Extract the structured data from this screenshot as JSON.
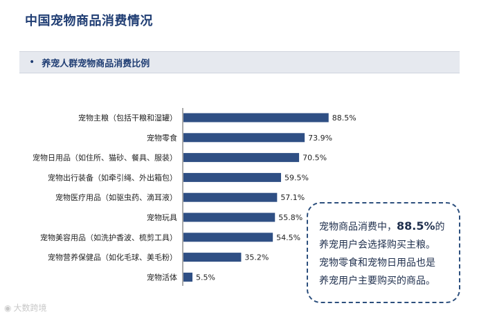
{
  "header": {
    "title": "中国宠物商品消费情况",
    "section_bullet": "•",
    "section_title": "养宠人群宠物商品消费比例"
  },
  "colors": {
    "bar": "#2f4f84",
    "title": "#1f3d73",
    "banner_bg": "#e6e9ef",
    "callout_border": "#2c4f7d"
  },
  "chart_data": {
    "type": "bar",
    "orientation": "horizontal",
    "title": "养宠人群宠物商品消费比例",
    "xlabel": "",
    "ylabel": "",
    "unit": "%",
    "xlim": [
      0,
      100
    ],
    "grid": false,
    "categories": [
      "宠物主粮（包括干粮和湿罐）",
      "宠物零食",
      "宠物日用品（如住所、猫砂、餐具、服装）",
      "宠物出行装备（如牵引绳、外出箱包）",
      "宠物医疗用品（如驱虫药、滴耳液）",
      "宠物玩具",
      "宠物美容用品（如洗护香波、梳剪工具）",
      "宠物营养保健品（如化毛球、美毛粉）",
      "宠物活体"
    ],
    "values": [
      88.5,
      73.9,
      70.5,
      59.5,
      57.1,
      55.8,
      54.5,
      35.2,
      5.5
    ],
    "value_labels": [
      "88.5%",
      "73.9%",
      "70.5%",
      "59.5%",
      "57.1%",
      "55.8%",
      "54.5%",
      "35.2%",
      "5.5%"
    ]
  },
  "callout": {
    "line1_pre": "宠物商品消费中，",
    "line1_highlight": "88.5%",
    "line1_post": "的",
    "line2": "养宠用户会选择购买主粮。",
    "line3": "宠物零食和宠物日用品也是",
    "line4": "养宠用户主要购买的商品。"
  },
  "watermark": {
    "icon": "weibo-icon",
    "text": "大数跨境"
  }
}
